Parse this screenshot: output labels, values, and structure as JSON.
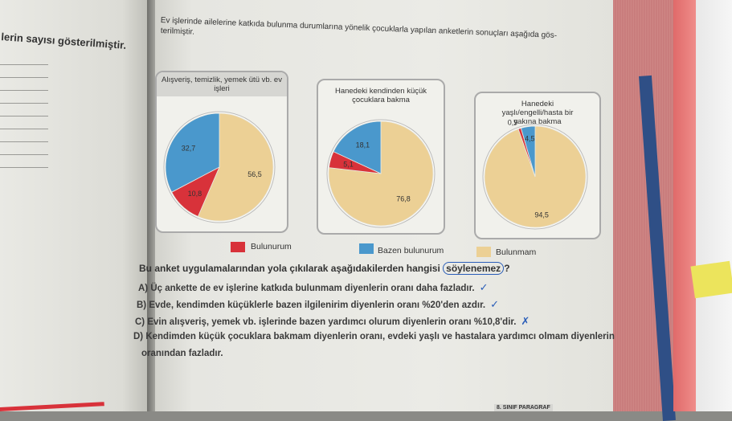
{
  "left_page": {
    "caption": "lerin sayısı gösterilmiştir."
  },
  "question": {
    "intro_line1": "Ev işlerinde ailelerine katkıda bulunma durumlarına yönelik çocuklarla yapılan anketlerin sonuçları aşağıda gös-",
    "intro_line2": "terilmiştir."
  },
  "legend": [
    {
      "label": "Bulunurum",
      "color": "#d8323a"
    },
    {
      "label": "Bazen bulunurum",
      "color": "#4a98cc"
    },
    {
      "label": "Bulunmam",
      "color": "#ecd095"
    }
  ],
  "chart_data": [
    {
      "type": "pie",
      "title": "Alışveriş, temizlik, yemek ütü vb. ev işleri",
      "slices": [
        {
          "label": "Bulunurum",
          "value": 10.8,
          "display": "10,8"
        },
        {
          "label": "Bazen bulunurum",
          "value": 32.7,
          "display": "32,7"
        },
        {
          "label": "Bulunmam",
          "value": 56.5,
          "display": "56,5"
        }
      ]
    },
    {
      "type": "pie",
      "title": "Hanedeki kendinden küçük çocuklara bakma",
      "slices": [
        {
          "label": "Bulunurum",
          "value": 5.1,
          "display": "5,1"
        },
        {
          "label": "Bazen bulunurum",
          "value": 18.1,
          "display": "18,1"
        },
        {
          "label": "Bulunmam",
          "value": 76.8,
          "display": "76,8"
        }
      ]
    },
    {
      "type": "pie",
      "title": "Hanedeki yaşlı/engelli/hasta bir yakına bakma",
      "slices": [
        {
          "label": "Bulunurum",
          "value": 0.9,
          "display": "0,9"
        },
        {
          "label": "Bazen bulunurum",
          "value": 4.5,
          "display": "4,5"
        },
        {
          "label": "Bulunmam",
          "value": 94.5,
          "display": "94,5"
        }
      ]
    }
  ],
  "prompt": {
    "text": "Bu anket uygulamalarından yola çıkılarak aşağıdakilerden hangisi ",
    "circled": "söylenemez",
    "suffix": "?"
  },
  "options": {
    "a": "A) Üç ankette de ev işlerine katkıda bulunmam diyenlerin oranı daha fazladır.",
    "a_mark": "✓",
    "b": "B) Evde, kendimden küçüklerle bazen ilgilenirim diyenlerin oranı %20'den azdır.",
    "b_mark": "✓",
    "c": "C) Evin alışveriş, yemek vb. işlerinde bazen yardımcı olurum diyenlerin oranı %10,8'dir.",
    "c_mark": "✗",
    "d1": "D) Kendimden küçük çocuklara bakmam diyenlerin oranı, evdeki yaşlı ve hastalara yardımcı olmam diyenlerin",
    "d2": "oranından fazladır."
  },
  "footer": {
    "label": "8. SINIF PARAGRAF"
  }
}
